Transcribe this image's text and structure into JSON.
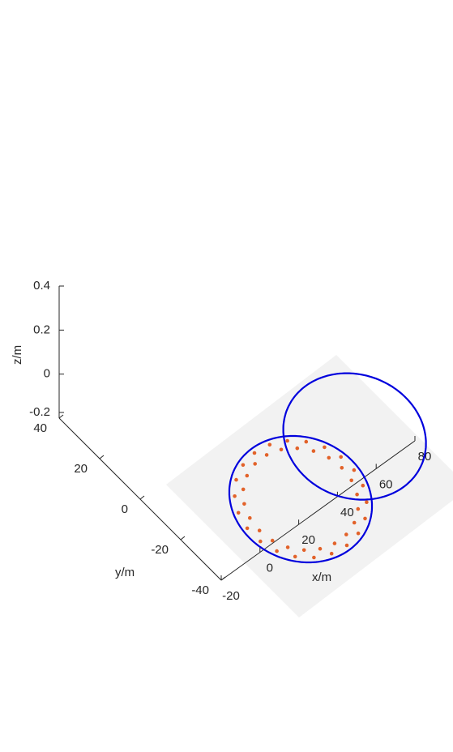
{
  "chart_data": {
    "type": "scatter",
    "projection": "3d",
    "xlabel": "x/m",
    "ylabel": "y/m",
    "zlabel": "z/m",
    "xlim": [
      -20,
      80
    ],
    "ylim": [
      -40,
      40
    ],
    "zlim": [
      -0.2,
      0.4
    ],
    "x_ticks": [
      "-20",
      "0",
      "20",
      "40",
      "60",
      "80"
    ],
    "y_ticks": [
      "-40",
      "-20",
      "0",
      "20",
      "40"
    ],
    "z_ticks": [
      "-0.2",
      "0",
      "0.2",
      "0.4"
    ],
    "grid": false,
    "colors": {
      "ellipse": "#0000dd",
      "markers": "#e2622a",
      "plane": "#f2f2f2",
      "axis": "#262626"
    },
    "ellipses": [
      {
        "center": [
          30,
          0,
          0
        ],
        "radius_x": 30,
        "radius_y": 30
      },
      {
        "center": [
          50,
          12,
          0.25
        ],
        "radius_x": 30,
        "radius_y": 30
      }
    ],
    "points_radius": 26,
    "points_center": [
      30,
      0,
      0
    ],
    "points_count": 44
  }
}
